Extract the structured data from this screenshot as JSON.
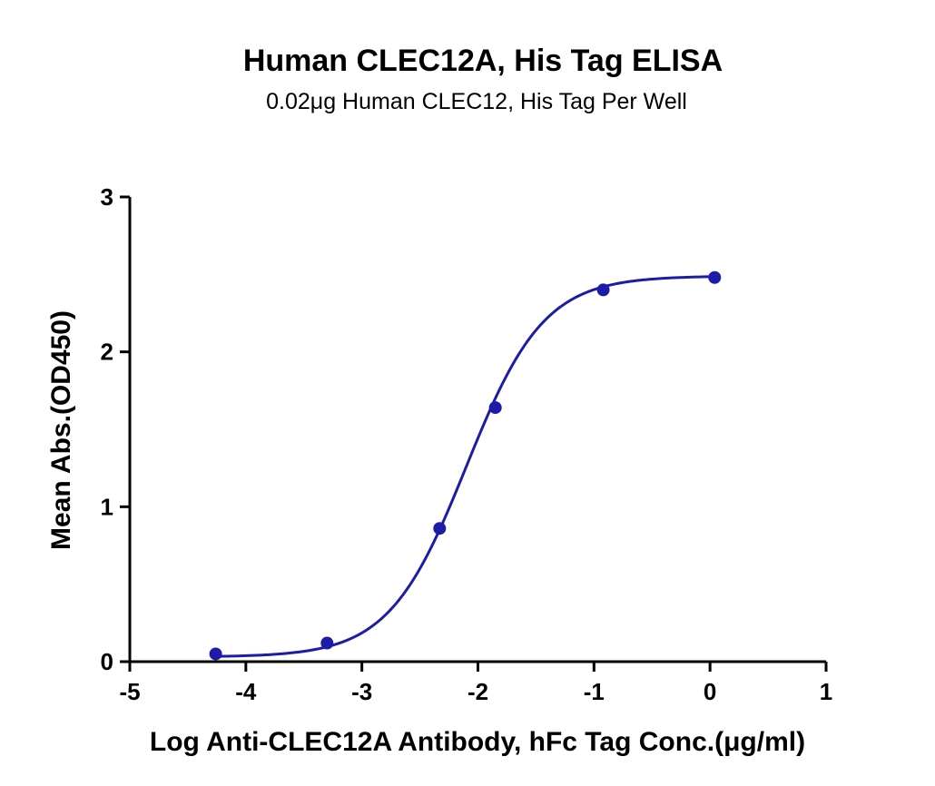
{
  "chart_data": {
    "type": "scatter",
    "title": "Human CLEC12A, His Tag ELISA",
    "subtitle": "0.02μg Human CLEC12, His Tag Per Well",
    "xlabel": "Log Anti-CLEC12A Antibody, hFc Tag Conc.(μg/ml)",
    "ylabel": "Mean Abs.(OD450)",
    "xlim": [
      -5,
      1
    ],
    "ylim": [
      0,
      3
    ],
    "x_ticks": [
      "-5",
      "-4",
      "-3",
      "-2",
      "-1",
      "0",
      "1"
    ],
    "y_ticks": [
      "0",
      "1",
      "2",
      "3"
    ],
    "grid": false,
    "series": [
      {
        "points": [
          {
            "x": -4.26,
            "y": 0.05
          },
          {
            "x": -3.3,
            "y": 0.12
          },
          {
            "x": -2.33,
            "y": 0.86
          },
          {
            "x": -1.85,
            "y": 1.64
          },
          {
            "x": -0.92,
            "y": 2.4
          },
          {
            "x": 0.04,
            "y": 2.48
          }
        ],
        "fit": {
          "bottom": 0.03,
          "top": 2.49,
          "logEC50": -2.1,
          "hill": 1.3
        },
        "color": "#1c1ca8"
      }
    ]
  }
}
